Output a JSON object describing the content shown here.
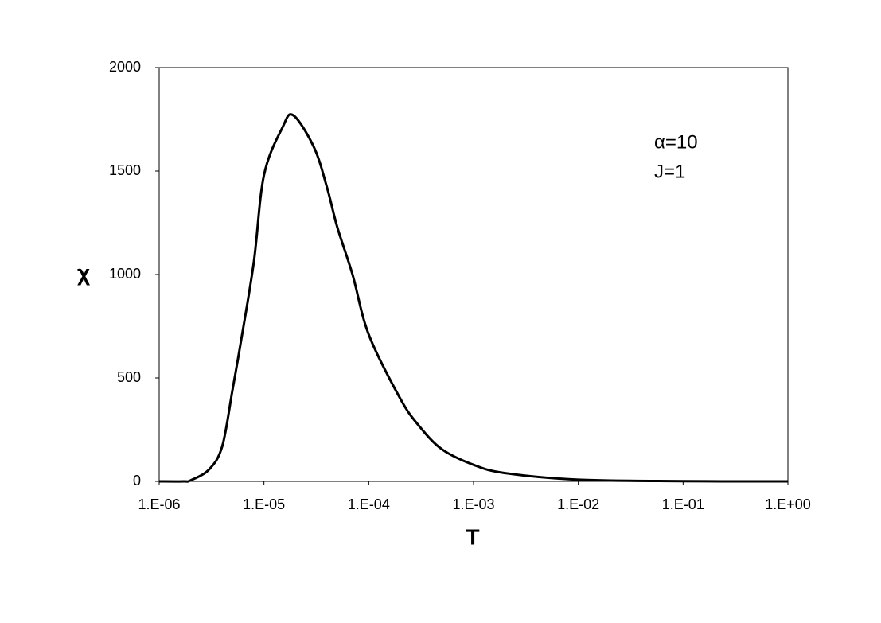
{
  "chart_data": {
    "type": "line",
    "xscale": "log",
    "x_label": "T",
    "y_label": "χ",
    "annotations": [
      "α=10",
      "J=1"
    ],
    "color": "#000000",
    "x": [
      1e-06,
      1.7e-06,
      2e-06,
      3e-06,
      4e-06,
      5e-06,
      6e-06,
      8e-06,
      1e-05,
      1.5e-05,
      1.9e-05,
      3e-05,
      4e-05,
      5e-05,
      7e-05,
      0.0001,
      0.0002,
      0.0003,
      0.0005,
      0.001,
      0.002,
      0.01,
      0.1,
      1
    ],
    "values": [
      0,
      0,
      5,
      58,
      170,
      440,
      670,
      1060,
      1480,
      1710,
      1770,
      1615,
      1420,
      1230,
      1000,
      710,
      400,
      270,
      155,
      80,
      40,
      8,
      1,
      0
    ],
    "xlim": [
      1e-06,
      1
    ],
    "xticks": [
      {
        "value": 1e-06,
        "label": "1.E-06"
      },
      {
        "value": 1e-05,
        "label": "1.E-05"
      },
      {
        "value": 0.0001,
        "label": "1.E-04"
      },
      {
        "value": 0.001,
        "label": "1.E-03"
      },
      {
        "value": 0.01,
        "label": "1.E-02"
      },
      {
        "value": 0.1,
        "label": "1.E-01"
      },
      {
        "value": 1,
        "label": "1.E+00"
      }
    ],
    "ylim": [
      0,
      2000
    ],
    "yticks": [
      0,
      500,
      1000,
      1500,
      2000
    ]
  }
}
